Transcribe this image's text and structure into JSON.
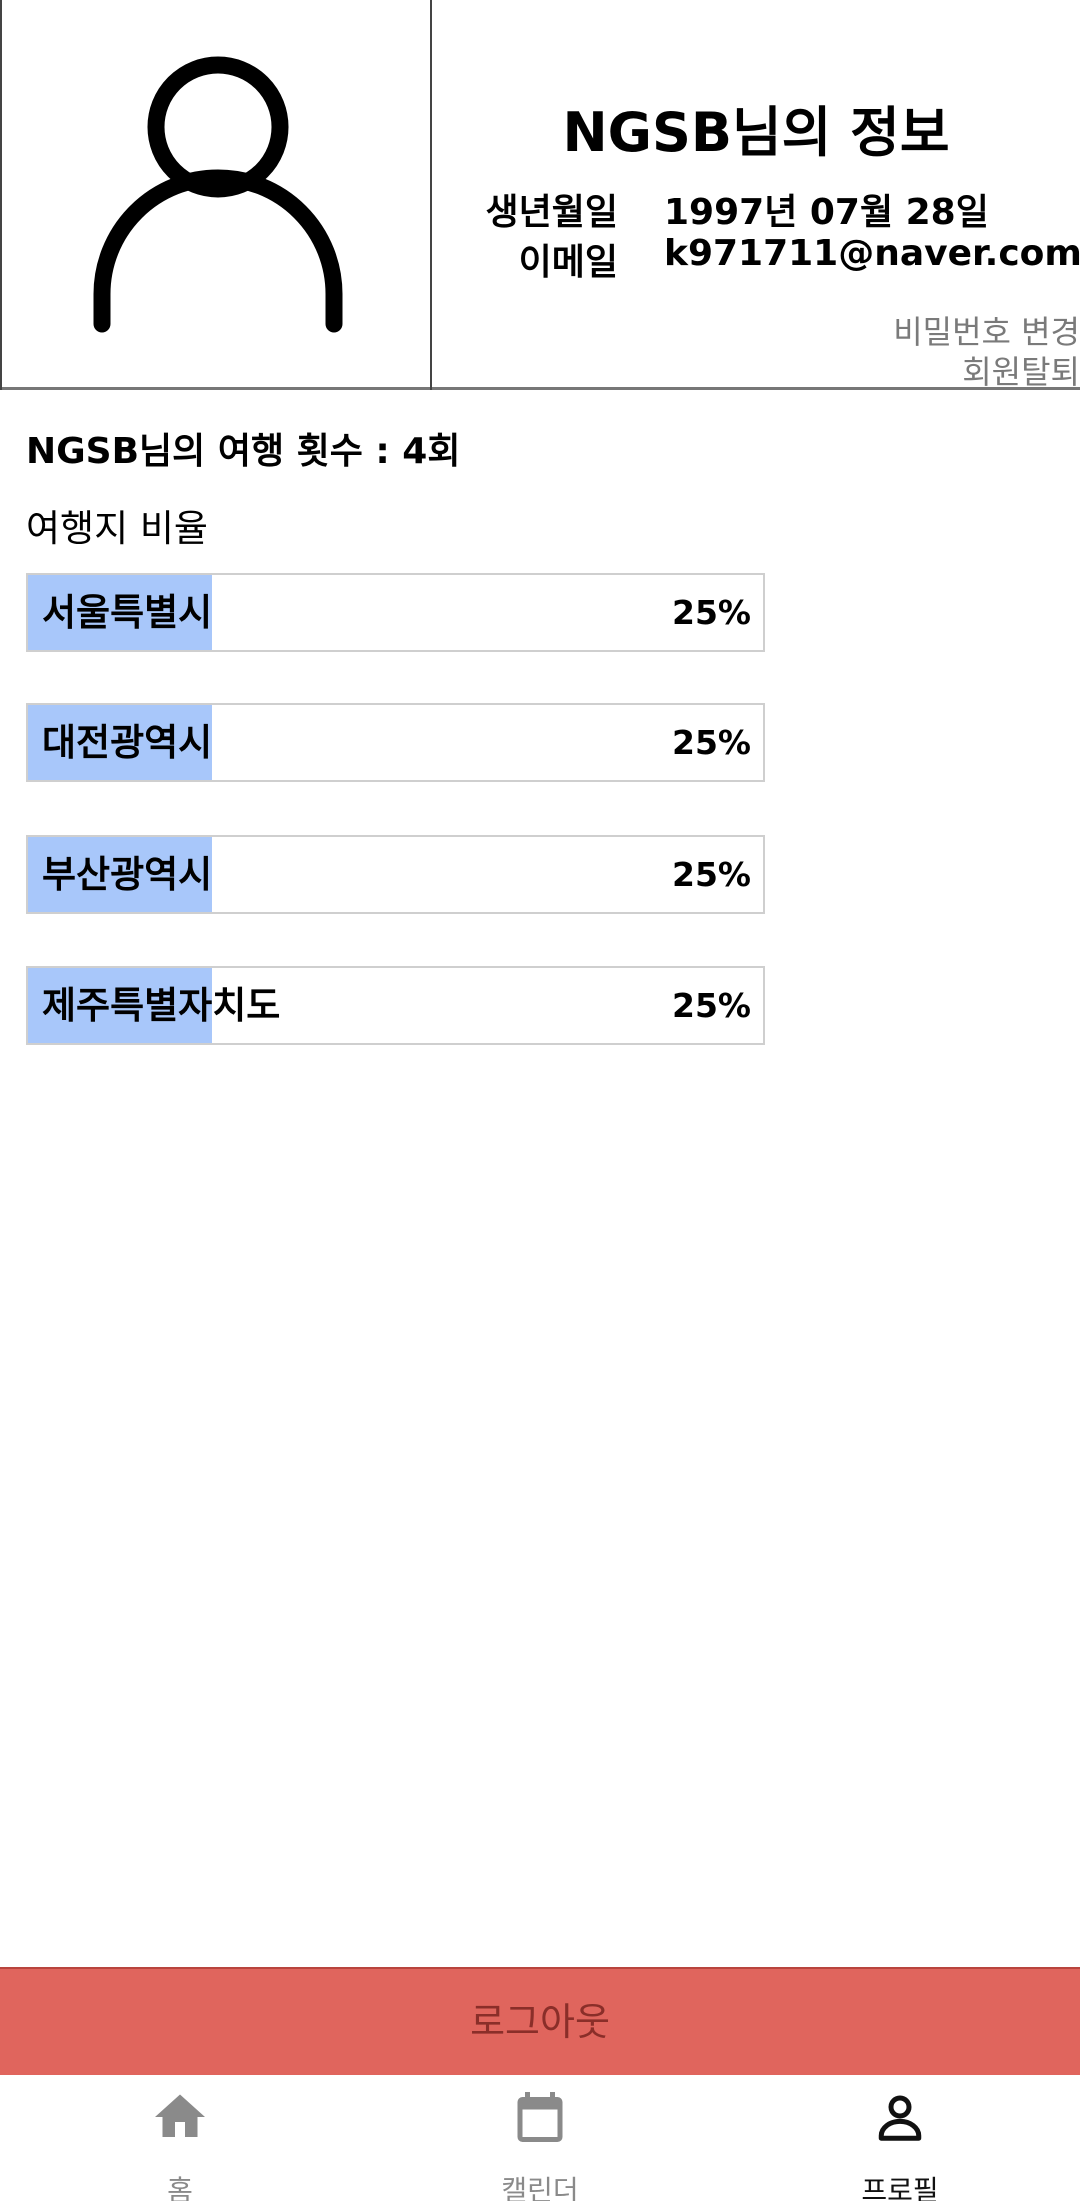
{
  "profile": {
    "title": "NGSB님의 정보",
    "birth_label": "생년월일",
    "birth_value": "1997년 07월 28일",
    "email_label": "이메일",
    "email_value": "k971711@naver.com",
    "change_password": "비밀번호 변경",
    "withdraw": "회원탈퇴",
    "avatar_icon": "person-outline-icon"
  },
  "stats": {
    "trip_count": "NGSB님의 여행 횟수 : 4회",
    "ratio_title": "여행지 비율",
    "bar_color": "#a8c7fa",
    "destinations": [
      {
        "name": "서울특별시",
        "percent": "25%",
        "ratio": 0.25
      },
      {
        "name": "대전광역시",
        "percent": "25%",
        "ratio": 0.25
      },
      {
        "name": "부산광역시",
        "percent": "25%",
        "ratio": 0.25
      },
      {
        "name": "제주특별자치도",
        "percent": "25%",
        "ratio": 0.25
      }
    ]
  },
  "logout_label": "로그아웃",
  "colors": {
    "logout_bg": "#e0655d",
    "logout_text": "#8a2e29"
  },
  "nav": {
    "items": [
      {
        "label": "홈",
        "icon": "home-icon",
        "active": false
      },
      {
        "label": "캘린더",
        "icon": "calendar-icon",
        "active": false
      },
      {
        "label": "프로필",
        "icon": "person-icon",
        "active": true
      }
    ]
  }
}
